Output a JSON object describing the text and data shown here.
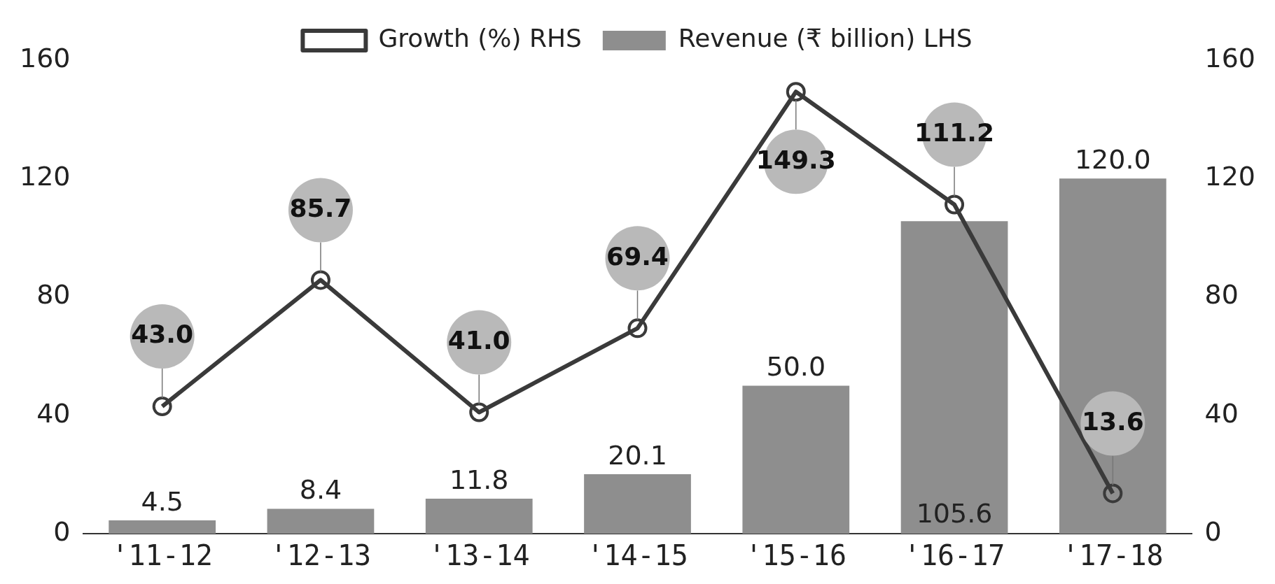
{
  "chart_data": {
    "type": "bar",
    "categories": [
      "'11-12",
      "'12-13",
      "'13-14",
      "'14-15",
      "'15-16",
      "'16-17",
      "'17-18"
    ],
    "series": [
      {
        "name": "Revenue (₹ billion) LHS",
        "color": "#8e8e8e",
        "values": [
          4.5,
          8.4,
          11.8,
          20.1,
          50.0,
          105.6,
          120.0
        ],
        "value_labels": [
          "4.5",
          "8.4",
          "11.8",
          "20.1",
          "50.0",
          "105.6",
          "120.0"
        ]
      },
      {
        "name": "Growth (%) RHS",
        "type": "line",
        "axis": "y2",
        "color": "#3a3a3a",
        "values": [
          43.0,
          85.7,
          41.0,
          69.4,
          149.3,
          111.2,
          13.6
        ],
        "value_labels": [
          "43.0",
          "85.7",
          "41.0",
          "69.4",
          "149.3",
          "111.2",
          "13.6"
        ]
      }
    ],
    "ylim": [
      0,
      160
    ],
    "yticks": [
      0,
      40,
      80,
      120,
      160
    ],
    "y2lim": [
      0,
      160
    ],
    "y2ticks": [
      0,
      40,
      80,
      120,
      160
    ],
    "grid": false,
    "legend": "top",
    "marker": "circle",
    "line_style": "solid"
  }
}
